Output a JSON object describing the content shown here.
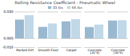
{
  "chart_data": {
    "type": "bar",
    "title": "Rolling Resistance Coefficient - Pneumatic Wheel",
    "categories": [
      "Packed Dirt",
      "Smooth Floor",
      "Carpet",
      "Concrete\n(25°F)",
      "Concrete\n(70°F)"
    ],
    "series": [
      {
        "name": "33 lbs",
        "color": "#9ab8d0",
        "values": [
          0.021,
          0.0128,
          0.019,
          0.0126,
          0.0199
        ]
      },
      {
        "name": "66 lbs",
        "color": "#c0d8e8",
        "values": [
          0.026,
          0.0166,
          0.0215,
          0.0154,
          0.0203
        ]
      }
    ],
    "ylim": [
      -0.01,
      0.03
    ],
    "yticks": [
      {
        "value": -0.01,
        "label": "-0.010"
      },
      {
        "value": 0.0,
        "label": "0.000"
      },
      {
        "value": 0.03,
        "label": "0.030"
      }
    ],
    "grid": true,
    "legend": "upper center"
  }
}
